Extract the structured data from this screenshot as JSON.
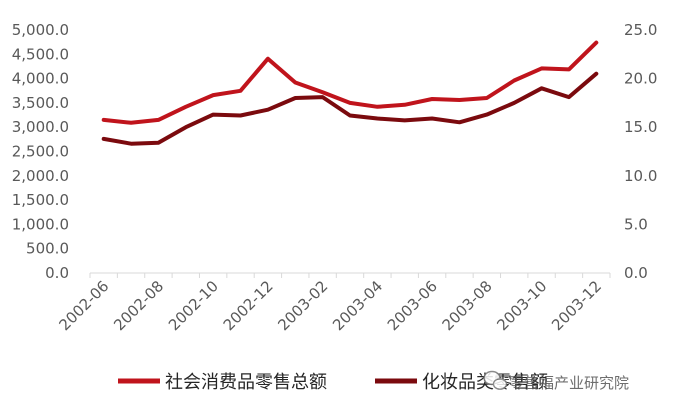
{
  "chart_data": {
    "type": "line",
    "title": "",
    "xlabel": "",
    "ylabel": "",
    "categories": [
      "2002-06",
      "2002-07",
      "2002-08",
      "2002-09",
      "2002-10",
      "2002-11",
      "2002-12",
      "2003-01",
      "2003-02",
      "2003-03",
      "2003-04",
      "2003-05",
      "2003-06",
      "2003-07",
      "2003-08",
      "2003-09",
      "2003-10",
      "2003-11",
      "2003-12"
    ],
    "x_tick_labels": [
      "2002-06",
      "2002-08",
      "2002-10",
      "2002-12",
      "2003-02",
      "2003-04",
      "2003-06",
      "2003-08",
      "2003-10",
      "2003-12"
    ],
    "y_left": {
      "ylim": [
        0,
        5000
      ],
      "ticks": [
        "0.0",
        "500.0",
        "1,000.0",
        "1,500.0",
        "2,000.0",
        "2,500.0",
        "3,000.0",
        "3,500.0",
        "4,000.0",
        "4,500.0",
        "5,000.0"
      ]
    },
    "y_right": {
      "ylim": [
        0,
        25
      ],
      "ticks": [
        "0.0",
        "5.0",
        "10.0",
        "15.0",
        "20.0",
        "25.0"
      ]
    },
    "grid": false,
    "legend_position": "bottom",
    "series": [
      {
        "name": "社会消费品零售总额",
        "axis": "left",
        "color": "#c0141c",
        "values": [
          3150,
          3090,
          3150,
          3420,
          3660,
          3750,
          4410,
          3920,
          3720,
          3500,
          3420,
          3460,
          3580,
          3560,
          3600,
          3960,
          4210,
          4190,
          4740
        ]
      },
      {
        "name": "化妆品类零售额",
        "axis": "right",
        "color": "#7b0a0e",
        "values": [
          13.8,
          13.3,
          13.4,
          15.0,
          16.3,
          16.2,
          16.8,
          18.0,
          18.1,
          16.2,
          15.9,
          15.7,
          15.9,
          15.5,
          16.3,
          17.5,
          19.0,
          18.1,
          20.5
        ]
      }
    ]
  },
  "watermark": {
    "icon": "wechat-icon",
    "text": "零售福产业研究院"
  }
}
